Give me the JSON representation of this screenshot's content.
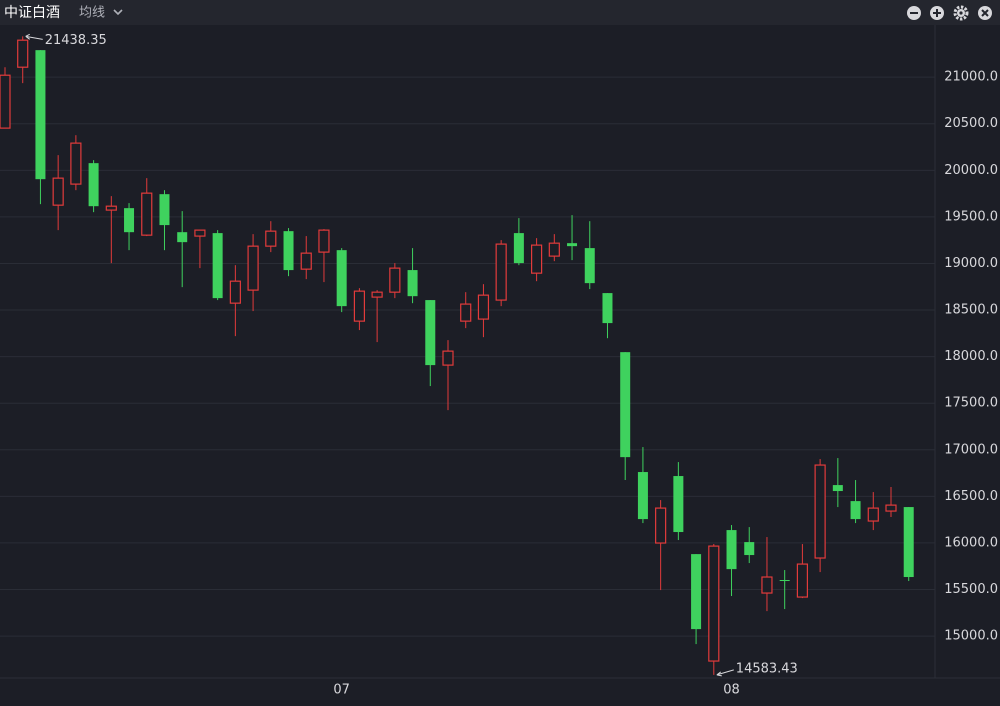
{
  "header": {
    "title": "中证白酒",
    "indicator": "均线"
  },
  "chart_data": {
    "type": "candlestick",
    "categories": [
      null,
      null,
      null,
      null,
      null,
      null,
      null,
      null,
      null,
      null,
      null,
      null,
      null,
      null,
      null,
      null,
      null,
      null,
      null,
      "07",
      null,
      null,
      null,
      null,
      null,
      null,
      null,
      null,
      null,
      null,
      null,
      null,
      null,
      null,
      null,
      null,
      null,
      null,
      null,
      null,
      null,
      "08",
      null,
      null,
      null,
      null,
      null,
      null,
      null,
      null,
      null,
      null
    ],
    "open": [
      20453,
      21107,
      21290,
      19626,
      19852,
      20077,
      19573,
      19594,
      19304,
      19744,
      19336,
      19294,
      19326,
      18574,
      18714,
      19186,
      19347,
      18939,
      19122,
      19143,
      18381,
      18639,
      18692,
      18929,
      18607,
      17909,
      18381,
      18403,
      18607,
      19326,
      18896,
      19079,
      19218,
      19165,
      18682,
      18048,
      16761,
      15999,
      16718,
      15880,
      14732,
      16138,
      16009,
      15462,
      15602,
      15419,
      15838,
      16621,
      16449,
      16235,
      16342,
      16385
    ],
    "high": [
      21107,
      21438.35,
      21290,
      20163,
      20377,
      20109,
      19723,
      19648,
      19916,
      19787,
      19562,
      19358,
      19358,
      18982,
      19315,
      19454,
      19380,
      19294,
      19369,
      19165,
      18735,
      18714,
      19004,
      19165,
      18607,
      18177,
      18692,
      18778,
      19251,
      19487,
      19272,
      19315,
      19519,
      19454,
      18682,
      18048,
      17029,
      16460,
      16868,
      15880,
      15988,
      16192,
      16170,
      16063,
      15709,
      15988,
      16900,
      16911,
      16675,
      16546,
      16600,
      16385
    ],
    "low": [
      20453,
      20936,
      19637,
      19358,
      19787,
      19551,
      19004,
      19143,
      19294,
      19143,
      18746,
      18950,
      18607,
      18220,
      18489,
      19122,
      18864,
      18832,
      18800,
      18478,
      18285,
      18156,
      18628,
      18574,
      17684,
      17426,
      18306,
      18209,
      18542,
      18982,
      18810,
      19025,
      19036,
      18725,
      18198,
      16675,
      16213,
      15494,
      16031,
      14914,
      14583.43,
      15430,
      15784,
      15268,
      15290,
      15408,
      15687,
      16385,
      16213,
      16138,
      16278,
      15591
    ],
    "close": [
      21021,
      21397,
      19905,
      19916,
      20292,
      19615,
      19615,
      19336,
      19755,
      19412,
      19229,
      19358,
      18628,
      18810,
      19186,
      19347,
      18929,
      19111,
      19358,
      18542,
      18703,
      18692,
      18950,
      18649,
      17909,
      18059,
      18564,
      18660,
      19208,
      19004,
      19197,
      19218,
      19186,
      18789,
      18360,
      16921,
      16256,
      16374,
      16117,
      15075,
      15966,
      15719,
      15870,
      15634,
      15591,
      15773,
      16836,
      16557,
      16256,
      16374,
      16406,
      15634
    ],
    "up_color": "#e23b3b",
    "down_color": "#3fd25e",
    "ylim": [
      14550,
      21560
    ],
    "yticks": [
      {
        "value": 15000,
        "label": "15000.0"
      },
      {
        "value": 15500,
        "label": "15500.0"
      },
      {
        "value": 16000,
        "label": "16000.0"
      },
      {
        "value": 16500,
        "label": "16500.0"
      },
      {
        "value": 17000,
        "label": "17000.0"
      },
      {
        "value": 17500,
        "label": "17500.0"
      },
      {
        "value": 18000,
        "label": "18000.0"
      },
      {
        "value": 18500,
        "label": "18500.0"
      },
      {
        "value": 19000,
        "label": "19000.0"
      },
      {
        "value": 19500,
        "label": "19500.0"
      },
      {
        "value": 20000,
        "label": "20000.0"
      },
      {
        "value": 20500,
        "label": "20500.0"
      },
      {
        "value": 21000,
        "label": "21000.0"
      }
    ],
    "grid": true,
    "annotations": [
      {
        "text": "21438.35"
      },
      {
        "text": "14583.43"
      }
    ]
  }
}
